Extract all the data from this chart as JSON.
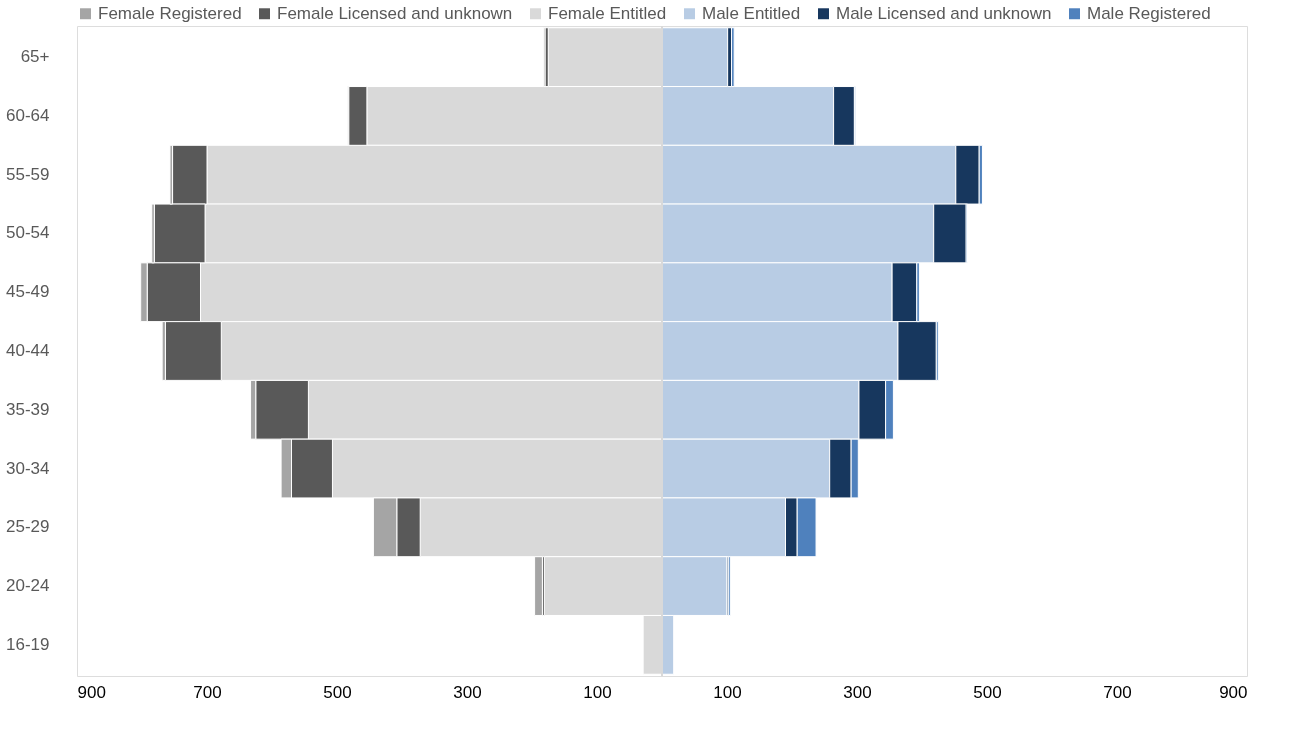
{
  "chart_data": {
    "type": "bar",
    "orientation": "horizontal",
    "stacked": true,
    "categories": [
      "65+",
      "60-64",
      "55-59",
      "50-54",
      "45-49",
      "40-44",
      "35-39",
      "30-34",
      "25-29",
      "20-24",
      "16-19"
    ],
    "series": [
      {
        "name": "Female Entitled",
        "color": "#d9d9d9",
        "values": [
          -175,
          -454,
          -700,
          -703,
          -710,
          -678,
          -544,
          -507,
          -372,
          -181,
          -29
        ]
      },
      {
        "name": "Female Licensed and unknown",
        "color": "#595959",
        "values": [
          -5,
          -28,
          -53,
          -78,
          -82,
          -86,
          -81,
          -63,
          -36,
          -3,
          0
        ]
      },
      {
        "name": "Female Registered",
        "color": "#a5a5a5",
        "values": [
          -2,
          -2,
          -4,
          -4,
          -10,
          -5,
          -8,
          -16,
          -36,
          -12,
          null
        ]
      },
      {
        "name": "Male Entitled",
        "color": "#b8cce4",
        "values": [
          101,
          264,
          452,
          418,
          354,
          363,
          303,
          258,
          190,
          100,
          18
        ]
      },
      {
        "name": "Male Licensed and unknown",
        "color": "#17375e",
        "values": [
          6,
          32,
          36,
          50,
          38,
          59,
          41,
          33,
          18,
          2,
          0
        ]
      },
      {
        "name": "Male Registered",
        "color": "#4f81bd",
        "values": [
          4,
          2,
          5,
          2,
          4,
          3,
          12,
          11,
          29,
          3,
          0
        ]
      }
    ],
    "xlim": [
      -900,
      900
    ],
    "xticks": [
      {
        "value": -900,
        "label": "900"
      },
      {
        "value": -700,
        "label": "700"
      },
      {
        "value": -500,
        "label": "500"
      },
      {
        "value": -300,
        "label": "300"
      },
      {
        "value": -100,
        "label": "100"
      },
      100,
      300,
      500,
      700,
      900
    ],
    "ref_lines": [
      {
        "axis": "x",
        "value": 0,
        "label": null,
        "color": "#d9d9d9"
      }
    ],
    "grid": false,
    "legend": "top"
  }
}
